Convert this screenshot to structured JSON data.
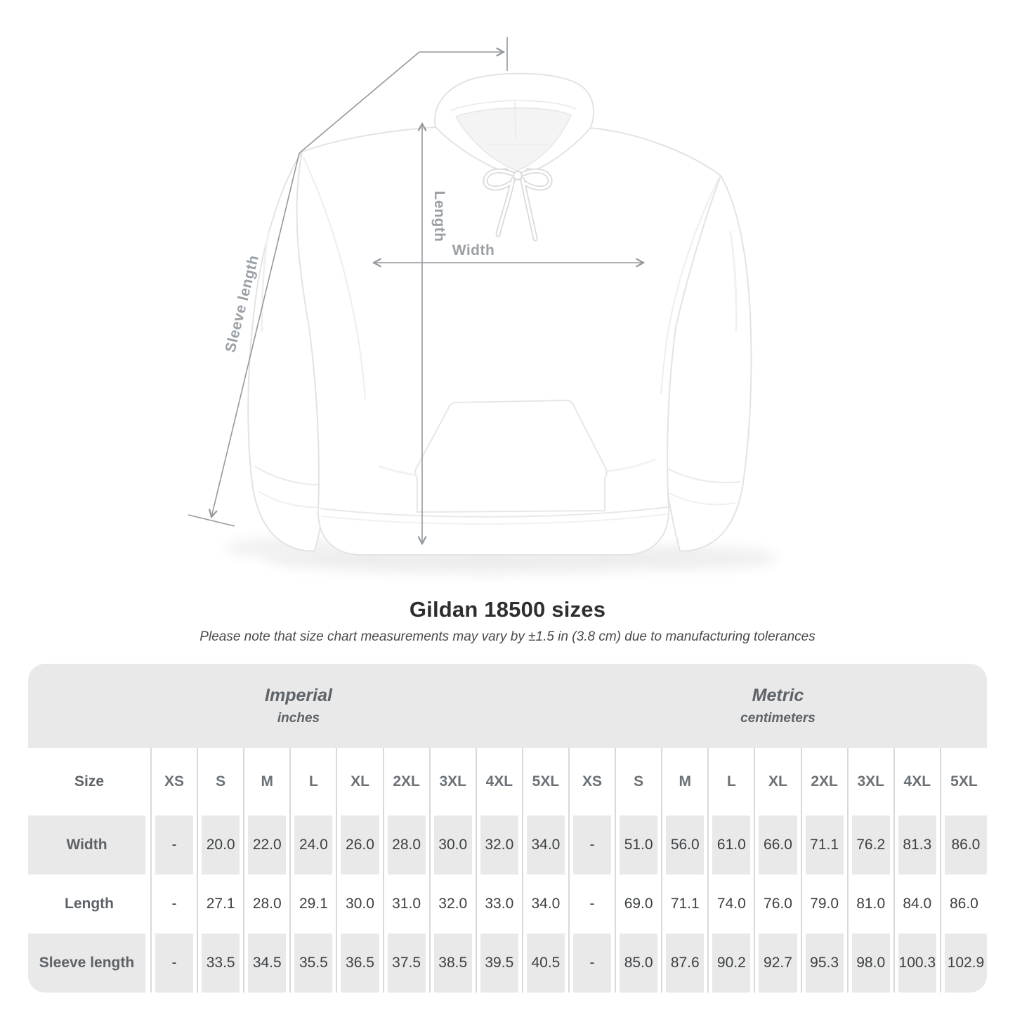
{
  "figure": {
    "width_label": "Width",
    "length_label": "Length",
    "sleeve_label": "Sleeve length"
  },
  "title": "Gildan 18500 sizes",
  "subtitle": "Please note that size chart measurements may vary by ±1.5 in (3.8 cm) due to manufacturing tolerances",
  "table": {
    "groups": [
      {
        "label": "Imperial",
        "sublabel": "inches"
      },
      {
        "label": "Metric",
        "sublabel": "centimeters"
      }
    ],
    "size_header": "Size",
    "sizes": [
      "XS",
      "S",
      "M",
      "L",
      "XL",
      "2XL",
      "3XL",
      "4XL",
      "5XL"
    ],
    "rows": [
      {
        "label": "Width",
        "imperial": [
          "-",
          "20.0",
          "22.0",
          "24.0",
          "26.0",
          "28.0",
          "30.0",
          "32.0",
          "34.0"
        ],
        "metric": [
          "-",
          "51.0",
          "56.0",
          "61.0",
          "66.0",
          "71.1",
          "76.2",
          "81.3",
          "86.0"
        ]
      },
      {
        "label": "Length",
        "imperial": [
          "-",
          "27.1",
          "28.0",
          "29.1",
          "30.0",
          "31.0",
          "32.0",
          "33.0",
          "34.0"
        ],
        "metric": [
          "-",
          "69.0",
          "71.1",
          "74.0",
          "76.0",
          "79.0",
          "81.0",
          "84.0",
          "86.0"
        ]
      },
      {
        "label": "Sleeve length",
        "imperial": [
          "-",
          "33.5",
          "34.5",
          "35.5",
          "36.5",
          "37.5",
          "38.5",
          "39.5",
          "40.5"
        ],
        "metric": [
          "-",
          "85.0",
          "87.6",
          "90.2",
          "92.7",
          "95.3",
          "98.0",
          "100.3",
          "102.9"
        ]
      }
    ]
  },
  "colors": {
    "band_gray": "#e9e9e9",
    "separator": "#d9d9d9",
    "heading_text": "#5d6368",
    "value_text": "#3c4043",
    "measure_line": "#94999e",
    "measure_label": "#9aa0a5"
  }
}
